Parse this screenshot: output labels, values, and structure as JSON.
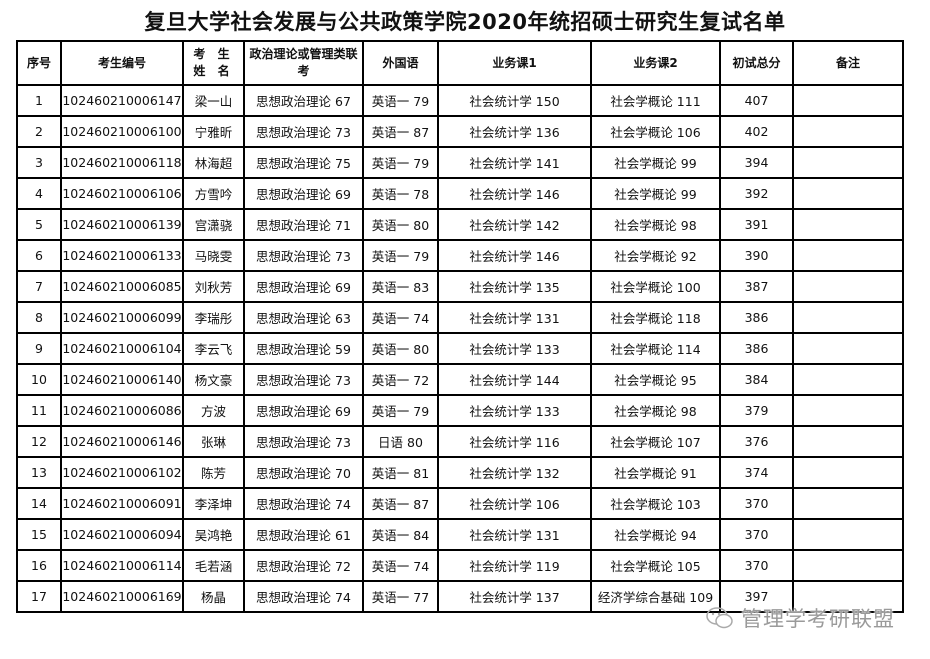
{
  "title": "复旦大学社会发展与公共政策学院2020年统招硕士研究生复试名单",
  "headers": [
    "序号",
    "考生编号",
    "考 生 姓 名",
    "政治理论或管理类联考",
    "外国语",
    "业务课1",
    "业务课2",
    "初试总分",
    "备注"
  ],
  "rows": [
    [
      "1",
      "102460210006147",
      "梁一山",
      "思想政治理论 67",
      "英语一 79",
      "社会统计学 150",
      "社会学概论 111",
      "407",
      ""
    ],
    [
      "2",
      "102460210006100",
      "宁雅昕",
      "思想政治理论 73",
      "英语一 87",
      "社会统计学 136",
      "社会学概论 106",
      "402",
      ""
    ],
    [
      "3",
      "102460210006118",
      "林海超",
      "思想政治理论 75",
      "英语一 79",
      "社会统计学 141",
      "社会学概论 99",
      "394",
      ""
    ],
    [
      "4",
      "102460210006106",
      "方雪吟",
      "思想政治理论 69",
      "英语一 78",
      "社会统计学 146",
      "社会学概论 99",
      "392",
      ""
    ],
    [
      "5",
      "102460210006139",
      "宫潇骁",
      "思想政治理论 71",
      "英语一 80",
      "社会统计学 142",
      "社会学概论 98",
      "391",
      ""
    ],
    [
      "6",
      "102460210006133",
      "马晓雯",
      "思想政治理论 73",
      "英语一 79",
      "社会统计学 146",
      "社会学概论 92",
      "390",
      ""
    ],
    [
      "7",
      "102460210006085",
      "刘秋芳",
      "思想政治理论 69",
      "英语一 83",
      "社会统计学 135",
      "社会学概论 100",
      "387",
      ""
    ],
    [
      "8",
      "102460210006099",
      "李瑞彤",
      "思想政治理论 63",
      "英语一 74",
      "社会统计学 131",
      "社会学概论 118",
      "386",
      ""
    ],
    [
      "9",
      "102460210006104",
      "李云飞",
      "思想政治理论 59",
      "英语一 80",
      "社会统计学 133",
      "社会学概论 114",
      "386",
      ""
    ],
    [
      "10",
      "102460210006140",
      "杨文豪",
      "思想政治理论 73",
      "英语一 72",
      "社会统计学 144",
      "社会学概论 95",
      "384",
      ""
    ],
    [
      "11",
      "102460210006086",
      "方波",
      "思想政治理论 69",
      "英语一 79",
      "社会统计学 133",
      "社会学概论 98",
      "379",
      ""
    ],
    [
      "12",
      "102460210006146",
      "张琳",
      "思想政治理论 73",
      "日语 80",
      "社会统计学 116",
      "社会学概论 107",
      "376",
      ""
    ],
    [
      "13",
      "102460210006102",
      "陈芳",
      "思想政治理论 70",
      "英语一 81",
      "社会统计学 132",
      "社会学概论 91",
      "374",
      ""
    ],
    [
      "14",
      "102460210006091",
      "李泽坤",
      "思想政治理论 74",
      "英语一 87",
      "社会统计学 106",
      "社会学概论 103",
      "370",
      ""
    ],
    [
      "15",
      "102460210006094",
      "吴鸿艳",
      "思想政治理论 61",
      "英语一 84",
      "社会统计学 131",
      "社会学概论 94",
      "370",
      ""
    ],
    [
      "16",
      "102460210006114",
      "毛若涵",
      "思想政治理论 72",
      "英语一 74",
      "社会统计学 119",
      "社会学概论 105",
      "370",
      ""
    ],
    [
      "17",
      "102460210006169",
      "杨晶",
      "思想政治理论 74",
      "英语一 77",
      "社会统计学 137",
      "经济学综合基础 109",
      "397",
      ""
    ]
  ],
  "watermark": {
    "text": "管理学考研联盟",
    "icon": "wechat-icon"
  }
}
